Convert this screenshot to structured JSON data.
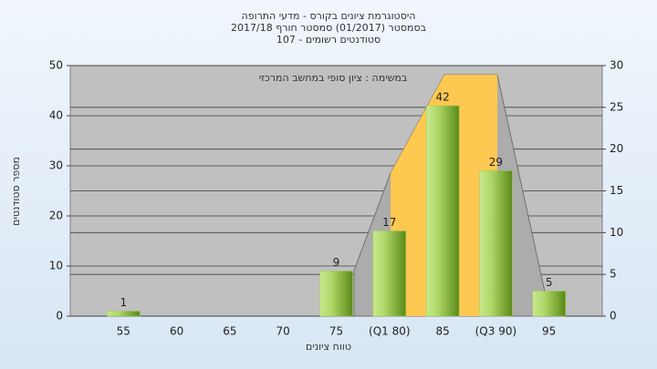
{
  "chart_data": {
    "type": "bar",
    "title_lines": [
      "היסטוגרמת ציונים בקורס - מדעי התרופה",
      "בסמסטר  (01/2017)  סמסטר חורף 2017/18",
      "סטודנטים רשומים - 107"
    ],
    "annotation": "במשימה : ציון סופי במחשב המרכזי",
    "x_label": "טווח ציונים",
    "y_label": "מספר סטודנטים",
    "categories": [
      "55",
      "60",
      "65",
      "70",
      "75",
      "(Q1 80)",
      "85",
      "(Q3 90)",
      "95"
    ],
    "values": [
      1,
      0,
      0,
      0,
      9,
      17,
      42,
      29,
      5
    ],
    "color": "#9cc850",
    "ylim": [
      0,
      50
    ],
    "yticks": [
      0,
      10,
      20,
      30,
      40,
      50
    ],
    "y2lim": [
      0,
      30
    ],
    "y2ticks": [
      0,
      5,
      10,
      15,
      20,
      25,
      30
    ],
    "grid": true
  }
}
